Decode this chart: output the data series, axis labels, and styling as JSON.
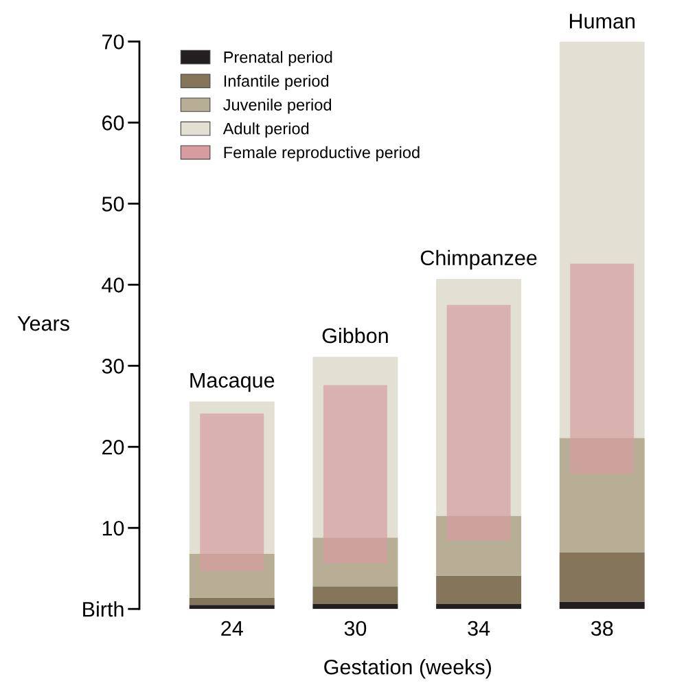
{
  "chart_data": {
    "type": "bar",
    "xlabel": "Gestation (weeks)",
    "ylabel": "Years",
    "categories": [
      "24",
      "30",
      "34",
      "38"
    ],
    "series": [
      {
        "name": "Prenatal period",
        "color": "#231f20",
        "base": [
          0,
          0,
          0,
          0
        ],
        "values": [
          0.5,
          0.6,
          0.6,
          0.9
        ]
      },
      {
        "name": "Infantile period",
        "color": "#85755b",
        "base": [
          0.5,
          0.6,
          0.6,
          0.9
        ],
        "values": [
          0.9,
          2.2,
          3.5,
          6.1
        ]
      },
      {
        "name": "Juvenile period",
        "color": "#b8ae96",
        "base": [
          1.4,
          2.8,
          4.1,
          7.0
        ],
        "values": [
          5.4,
          6.0,
          7.4,
          14.1
        ]
      },
      {
        "name": "Adult period",
        "color": "#e2e0d2",
        "base": [
          6.8,
          8.8,
          11.5,
          21.1
        ],
        "values": [
          18.8,
          22.3,
          29.2,
          48.9
        ]
      },
      {
        "name": "Female reproductive period",
        "color": "#d69c9f",
        "base": [
          4.7,
          5.6,
          8.5,
          16.7
        ],
        "values": [
          19.4,
          22.0,
          29.0,
          25.9
        ]
      }
    ],
    "ylim": [
      0,
      70
    ],
    "yticks": [
      {
        "value": 0,
        "label": "Birth"
      },
      10,
      20,
      30,
      40,
      50,
      60,
      70
    ],
    "legend": "top left",
    "grid": false,
    "annotations": [
      {
        "text": "Macaque",
        "x": "24",
        "y": 25.6
      },
      {
        "text": "Gibbon",
        "x": "30",
        "y": 31.1
      },
      {
        "text": "Chimpanzee",
        "x": "34",
        "y": 40.7
      },
      {
        "text": "Human",
        "x": "38",
        "y": 69.9
      }
    ]
  }
}
